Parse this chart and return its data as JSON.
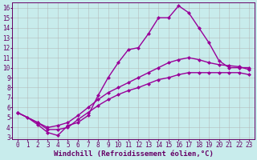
{
  "xlabel": "Windchill (Refroidissement éolien,°C)",
  "bg_color": "#c8ecec",
  "line_color": "#990099",
  "grid_color": "#b0b0b0",
  "xlim": [
    -0.5,
    23.5
  ],
  "ylim": [
    2.8,
    16.5
  ],
  "xticks": [
    0,
    1,
    2,
    3,
    4,
    5,
    6,
    7,
    8,
    9,
    10,
    11,
    12,
    13,
    14,
    15,
    16,
    17,
    18,
    19,
    20,
    21,
    22,
    23
  ],
  "yticks": [
    3,
    4,
    5,
    6,
    7,
    8,
    9,
    10,
    11,
    12,
    13,
    14,
    15,
    16
  ],
  "line1_x": [
    0,
    1,
    2,
    3,
    4,
    5,
    6,
    7,
    8,
    9,
    10,
    11,
    12,
    13,
    14,
    15,
    16,
    17,
    18,
    19,
    20,
    21,
    22,
    23
  ],
  "line1_y": [
    5.5,
    5.0,
    4.3,
    3.5,
    3.2,
    4.2,
    4.5,
    5.2,
    7.2,
    9.0,
    10.5,
    11.8,
    12.0,
    13.4,
    15.0,
    15.0,
    16.2,
    15.5,
    14.0,
    12.5,
    10.7,
    10.0,
    10.0,
    10.0
  ],
  "line2_x": [
    0,
    2,
    3,
    4,
    5,
    6,
    7,
    8,
    9,
    10,
    11,
    12,
    13,
    14,
    15,
    16,
    17,
    18,
    19,
    20,
    21,
    22,
    23
  ],
  "line2_y": [
    5.5,
    4.5,
    4.0,
    4.2,
    4.5,
    5.2,
    6.0,
    6.8,
    7.5,
    8.0,
    8.5,
    9.0,
    9.5,
    10.0,
    10.5,
    10.8,
    11.0,
    10.8,
    10.5,
    10.3,
    10.2,
    10.1,
    9.8
  ],
  "line3_x": [
    0,
    2,
    3,
    4,
    5,
    6,
    7,
    8,
    9,
    10,
    11,
    12,
    13,
    14,
    15,
    16,
    17,
    18,
    19,
    20,
    21,
    22,
    23
  ],
  "line3_y": [
    5.5,
    4.5,
    3.8,
    3.8,
    4.0,
    4.8,
    5.5,
    6.2,
    6.8,
    7.3,
    7.7,
    8.0,
    8.4,
    8.8,
    9.0,
    9.3,
    9.5,
    9.5,
    9.5,
    9.5,
    9.5,
    9.5,
    9.3
  ],
  "markersize": 2.5,
  "linewidth": 1.0,
  "tick_fontsize": 5.5,
  "label_fontsize": 6.5
}
